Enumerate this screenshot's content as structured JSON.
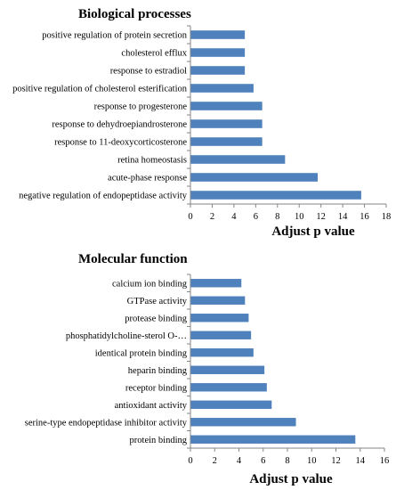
{
  "colors": {
    "bar": "#4F81BD",
    "axis": "#868686",
    "text": "#000000"
  },
  "chart_data": [
    {
      "type": "bar",
      "orientation": "horizontal",
      "title": "Biological processes",
      "xlabel": "Adjust p value",
      "categories": [
        "positive regulation of protein secretion",
        "cholesterol efflux",
        "response to estradiol",
        "positive regulation of cholesterol esterification",
        "response to progesterone",
        "response to dehydroepiandrosterone",
        "response to 11-deoxycorticosterone",
        "retina homeostasis",
        "acute-phase response",
        "negative regulation of endopeptidase activity"
      ],
      "values": [
        5.0,
        5.0,
        5.0,
        5.8,
        6.6,
        6.6,
        6.6,
        8.7,
        11.7,
        15.7
      ],
      "xlim": [
        0,
        18
      ],
      "xticks": [
        0,
        2,
        4,
        6,
        8,
        10,
        12,
        14,
        16,
        18
      ]
    },
    {
      "type": "bar",
      "orientation": "horizontal",
      "title": "Molecular function",
      "xlabel": "Adjust p value",
      "categories": [
        "calcium ion binding",
        "GTPase activity",
        "protease binding",
        "phosphatidylcholine-sterol O-…",
        "identical protein binding",
        "heparin binding",
        "receptor binding",
        "antioxidant activity",
        "serine-type endopeptidase inhibitor activity",
        "protein binding"
      ],
      "values": [
        4.2,
        4.5,
        4.8,
        5.0,
        5.2,
        6.1,
        6.3,
        6.7,
        8.7,
        13.6
      ],
      "xlim": [
        0,
        16
      ],
      "xticks": [
        0,
        2,
        4,
        6,
        8,
        10,
        12,
        14,
        16
      ]
    }
  ]
}
